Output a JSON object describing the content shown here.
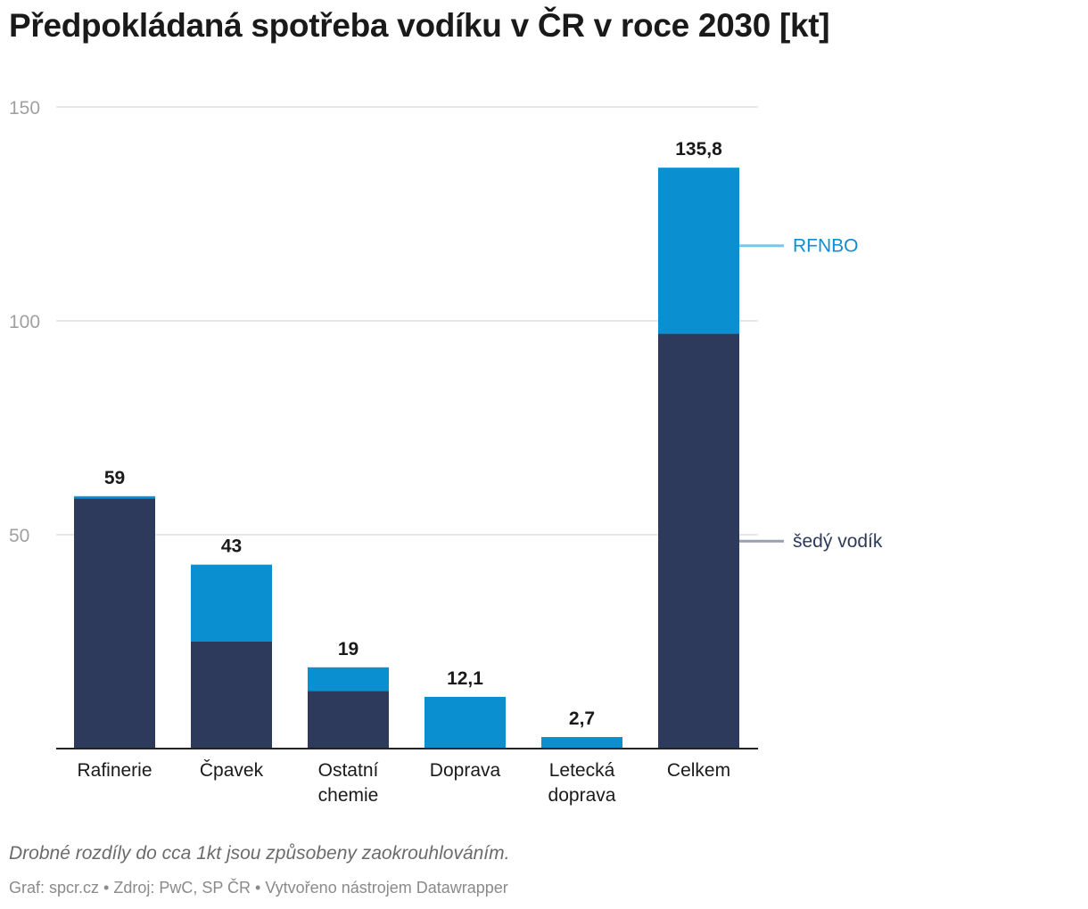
{
  "title": "Předpokládaná spotřeba vodíku v ČR v roce 2030 [kt]",
  "note": "Drobné rozdíly do cca 1kt jsou způsobeny zaokrouhlováním.",
  "footer": "Graf: spcr.cz • Zdroj: PwC, SP ČR • Vytvořeno nástrojem Datawrapper",
  "chart_data": {
    "type": "bar",
    "stacked": true,
    "categories": [
      [
        "Rafinerie"
      ],
      [
        "Čpavek"
      ],
      [
        "Ostatní",
        "chemie"
      ],
      [
        "Doprava"
      ],
      [
        "Letecká",
        "doprava"
      ],
      [
        "Celkem"
      ]
    ],
    "series": [
      {
        "name": "šedý vodík",
        "color": "#2e3a5c",
        "values": [
          58.5,
          25,
          13.5,
          0,
          0,
          97
        ]
      },
      {
        "name": "RFNBO",
        "color": "#0a8fd0",
        "values": [
          0.5,
          18,
          5.5,
          12.1,
          2.7,
          38.8
        ]
      }
    ],
    "totals": [
      59,
      43,
      19,
      12.1,
      2.7,
      135.8
    ],
    "total_labels": [
      "59",
      "43",
      "19",
      "12,1",
      "2,7",
      "135,8"
    ],
    "yticks": [
      50,
      100,
      150
    ],
    "ylim": [
      0,
      150
    ],
    "legend_placement": "right, inline next to the last bar",
    "legend_colors": {
      "RFNBO": "#0a8fd0",
      "šedý vodík": "#2e3a5c"
    },
    "legend_line_colors": {
      "RFNBO": "#7fc4ea",
      "šedý vodík": "#9aa0b0"
    },
    "grid": true
  }
}
